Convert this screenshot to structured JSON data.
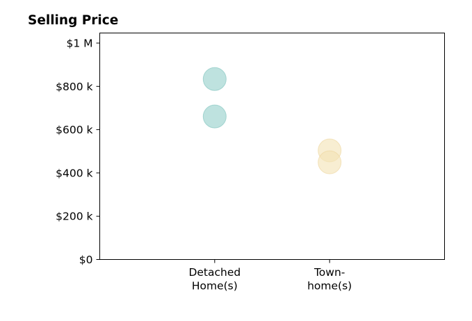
{
  "chart_data": {
    "type": "scatter",
    "title": "Selling Price",
    "xlabel": "",
    "ylabel": "",
    "categories": [
      [
        "Detached",
        "Home(s)"
      ],
      [
        "Town-",
        "home(s)"
      ]
    ],
    "xlim": [
      -1,
      2
    ],
    "ylim": [
      0,
      1000000
    ],
    "y_ticks": [
      0,
      200000,
      400000,
      600000,
      800000,
      1000000
    ],
    "y_tick_labels": [
      "$0",
      "$200 k",
      "$400 k",
      "$600 k",
      "$800 k",
      "$1 M"
    ],
    "grid": false,
    "legend": "none",
    "series": [
      {
        "category_index": 0,
        "color": "#a8d8d4",
        "stroke": "#8ccac4",
        "opacity": 0.75,
        "values": [
          834000,
          661000
        ]
      },
      {
        "category_index": 1,
        "color": "#f4e2b4",
        "stroke": "#ecd39a",
        "opacity": 0.6,
        "values": [
          504000,
          449000
        ]
      }
    ]
  }
}
